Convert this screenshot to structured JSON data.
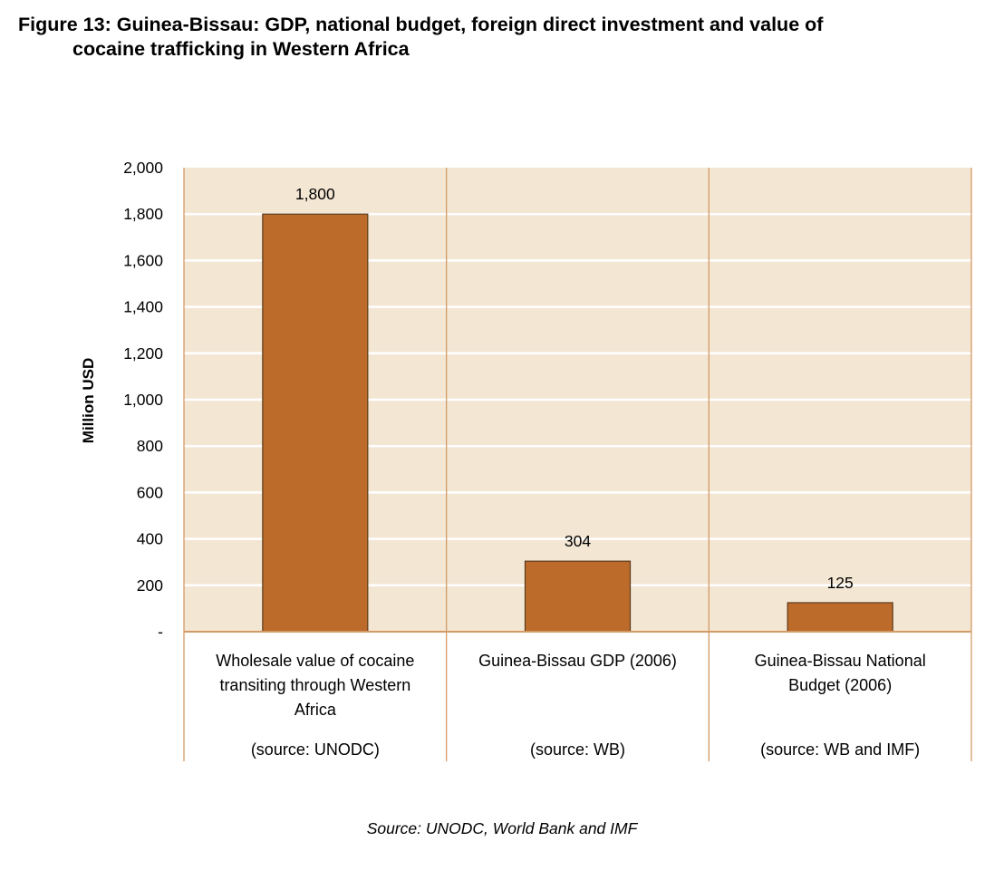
{
  "figure": {
    "title_line1": "Figure 13: Guinea-Bissau: GDP, national budget, foreign direct investment and value of",
    "title_line2": "cocaine trafficking in Western Africa",
    "source_note": "Source: UNODC, World Bank and IMF"
  },
  "colors": {
    "plot_background": "#F3E6D3",
    "bar_fill": "#BC6B2B",
    "bar_stroke": "#5a3a1c",
    "gridline": "#ffffff",
    "axis_line": "#D49A66"
  },
  "chart_data": {
    "type": "bar",
    "title": "Figure 13: Guinea-Bissau: GDP, national budget, foreign direct investment and value of cocaine trafficking in Western Africa",
    "xlabel": "",
    "ylabel": "Million USD",
    "ylim": [
      0,
      2000
    ],
    "yticks": [
      0,
      200,
      400,
      600,
      800,
      1000,
      1200,
      1400,
      1600,
      1800,
      2000
    ],
    "ytick_labels": [
      "-",
      "200",
      "400",
      "600",
      "800",
      "1,000",
      "1,200",
      "1,400",
      "1,600",
      "1,800",
      "2,000"
    ],
    "grid": true,
    "legend": "none",
    "categories": [
      "Wholesale value of cocaine transiting through Western Africa",
      "Guinea-Bissau GDP (2006)",
      "Guinea-Bissau National Budget (2006)"
    ],
    "category_label_lines": [
      [
        "Wholesale value of cocaine",
        "transiting through Western",
        "Africa"
      ],
      [
        "Guinea-Bissau GDP (2006)"
      ],
      [
        "Guinea-Bissau National",
        "Budget (2006)"
      ]
    ],
    "category_sources": [
      "(source: UNODC)",
      "(source: WB)",
      "(source: WB and IMF)"
    ],
    "values": [
      1800,
      304,
      125
    ],
    "data_labels": [
      "1,800",
      "304",
      "125"
    ]
  }
}
